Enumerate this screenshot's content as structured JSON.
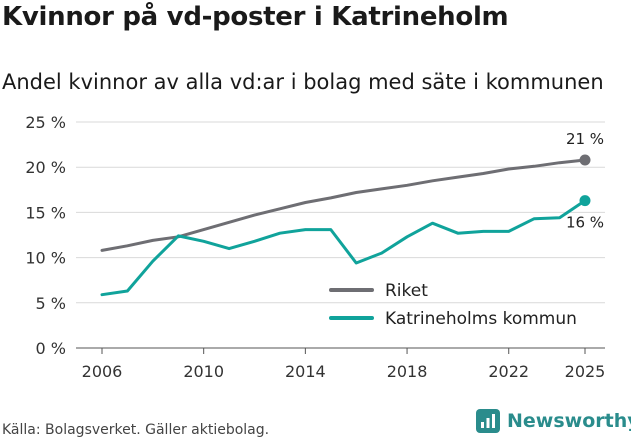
{
  "title": "Kvinnor på vd-poster i Katrineholm",
  "subtitle": "Andel kvinnor av alla vd:ar i bolag med säte i kommunen",
  "source": "Källa: Bolagsverket. Gäller aktiebolag.",
  "brand": "Newsworthy",
  "colors": {
    "riket": "#6e6e73",
    "katrineholm": "#10a39b",
    "grid": "#d9d9d9",
    "brand": "#2a8c8c"
  },
  "chart_data": {
    "type": "line",
    "title": "Kvinnor på vd-poster i Katrineholm",
    "subtitle": "Andel kvinnor av alla vd:ar i bolag med säte i kommunen",
    "xlabel": "",
    "ylabel": "",
    "xlim": [
      2006,
      2025
    ],
    "ylim": [
      0,
      25
    ],
    "x_ticks": [
      2006,
      2010,
      2014,
      2018,
      2022,
      2025
    ],
    "x_tick_labels": [
      "2006",
      "2010",
      "2014",
      "2018",
      "2022",
      "2025"
    ],
    "y_ticks": [
      0,
      5,
      10,
      15,
      20,
      25
    ],
    "y_tick_labels": [
      "0 %",
      "5 %",
      "10 %",
      "15 %",
      "20 %",
      "25 %"
    ],
    "grid": true,
    "legend_position": "bottom-right",
    "x": [
      2006,
      2007,
      2008,
      2009,
      2010,
      2011,
      2012,
      2013,
      2014,
      2015,
      2016,
      2017,
      2018,
      2019,
      2020,
      2021,
      2022,
      2023,
      2024,
      2025
    ],
    "series": [
      {
        "name": "Riket",
        "color": "#6e6e73",
        "end_label": "21 %",
        "values": [
          10.8,
          11.3,
          11.9,
          12.3,
          13.1,
          13.9,
          14.7,
          15.4,
          16.1,
          16.6,
          17.2,
          17.6,
          18.0,
          18.5,
          18.9,
          19.3,
          19.8,
          20.1,
          20.5,
          20.8
        ]
      },
      {
        "name": "Katrineholms kommun",
        "color": "#10a39b",
        "end_label": "16 %",
        "values": [
          5.9,
          6.3,
          9.6,
          12.4,
          11.8,
          11.0,
          11.8,
          12.7,
          13.1,
          13.1,
          9.4,
          10.5,
          12.3,
          13.8,
          12.7,
          12.9,
          12.9,
          14.3,
          14.4,
          16.3
        ]
      }
    ]
  }
}
